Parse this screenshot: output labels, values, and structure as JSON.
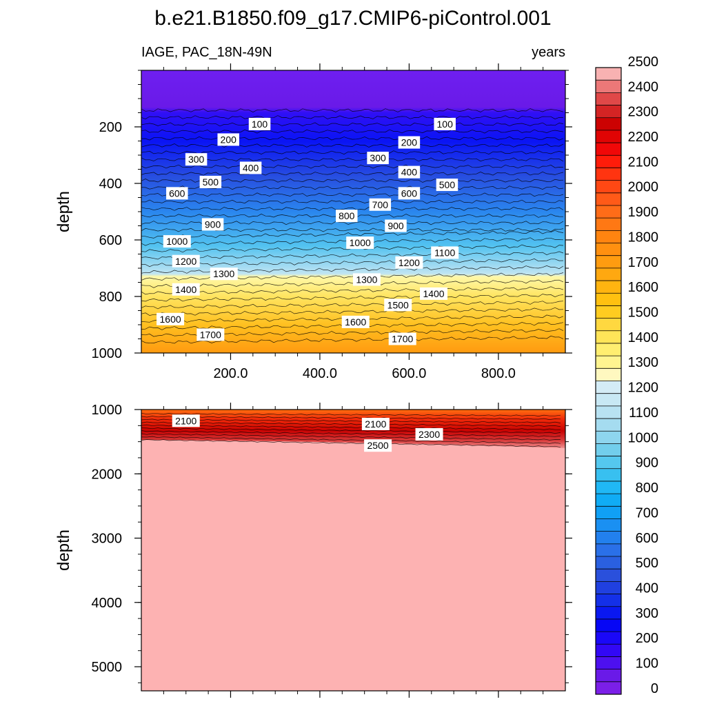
{
  "chart_data": {
    "type": "contour",
    "title": "b.e21.B1850.f09_g17.CMIP6-piControl.001",
    "variable_label": "IAGE, PAC_18N-49N",
    "units_label": "years",
    "panels": [
      {
        "ylabel": "depth",
        "y_range": [
          0,
          1000
        ],
        "y_reversed": true,
        "x_range": [
          0,
          950
        ],
        "x_ticks": [
          "200.0",
          "400.0",
          "600.0",
          "800.0"
        ],
        "y_ticks": [
          "200",
          "400",
          "600",
          "800",
          "1000"
        ],
        "contour_labels": [
          {
            "text": "100",
            "x": 265,
            "y": 190
          },
          {
            "text": "100",
            "x": 680,
            "y": 190
          },
          {
            "text": "200",
            "x": 195,
            "y": 245
          },
          {
            "text": "200",
            "x": 600,
            "y": 255
          },
          {
            "text": "300",
            "x": 123,
            "y": 315
          },
          {
            "text": "300",
            "x": 530,
            "y": 310
          },
          {
            "text": "400",
            "x": 245,
            "y": 345
          },
          {
            "text": "400",
            "x": 600,
            "y": 360
          },
          {
            "text": "500",
            "x": 155,
            "y": 395
          },
          {
            "text": "500",
            "x": 685,
            "y": 405
          },
          {
            "text": "600",
            "x": 80,
            "y": 435
          },
          {
            "text": "600",
            "x": 600,
            "y": 435
          },
          {
            "text": "700",
            "x": 535,
            "y": 475
          },
          {
            "text": "800",
            "x": 460,
            "y": 515
          },
          {
            "text": "900",
            "x": 160,
            "y": 545
          },
          {
            "text": "900",
            "x": 570,
            "y": 550
          },
          {
            "text": "1000",
            "x": 80,
            "y": 605
          },
          {
            "text": "1000",
            "x": 490,
            "y": 610
          },
          {
            "text": "1100",
            "x": 680,
            "y": 645
          },
          {
            "text": "1200",
            "x": 100,
            "y": 675
          },
          {
            "text": "1200",
            "x": 600,
            "y": 680
          },
          {
            "text": "1300",
            "x": 185,
            "y": 720
          },
          {
            "text": "1300",
            "x": 505,
            "y": 740
          },
          {
            "text": "1400",
            "x": 100,
            "y": 775
          },
          {
            "text": "1400",
            "x": 655,
            "y": 790
          },
          {
            "text": "1500",
            "x": 575,
            "y": 830
          },
          {
            "text": "1600",
            "x": 65,
            "y": 880
          },
          {
            "text": "1600",
            "x": 480,
            "y": 890
          },
          {
            "text": "1700",
            "x": 155,
            "y": 935
          },
          {
            "text": "1700",
            "x": 585,
            "y": 950
          }
        ]
      },
      {
        "ylabel": "depth",
        "y_range": [
          1000,
          5375
        ],
        "y_reversed": true,
        "x_range": [
          0,
          950
        ],
        "y_ticks": [
          "1000",
          "2000",
          "3000",
          "4000",
          "5000"
        ],
        "contour_labels": [
          {
            "text": "2100",
            "x": 100,
            "y": 1175
          },
          {
            "text": "2100",
            "x": 525,
            "y": 1225
          },
          {
            "text": "2300",
            "x": 645,
            "y": 1385
          },
          {
            "text": "2500",
            "x": 530,
            "y": 1560
          }
        ]
      }
    ],
    "colorbar": {
      "labels": [
        "0",
        "100",
        "200",
        "300",
        "400",
        "500",
        "600",
        "700",
        "800",
        "900",
        "1000",
        "1100",
        "1200",
        "1300",
        "1400",
        "1500",
        "1600",
        "1700",
        "1800",
        "1900",
        "2000",
        "2100",
        "2200",
        "2300",
        "2400",
        "2500"
      ],
      "colors": [
        "#7b1fe8",
        "#6a1ae8",
        "#4d10ef",
        "#3208f5",
        "#1a08f8",
        "#0606f5",
        "#0a18f0",
        "#1430e8",
        "#2040e0",
        "#2a50dc",
        "#2a60e0",
        "#2a70e8",
        "#2280ee",
        "#1a90f2",
        "#10a0f5",
        "#10acf5",
        "#20b8f5",
        "#38c0f0",
        "#55c8ee",
        "#72ceec",
        "#8ed5ee",
        "#a5dcf0",
        "#b8e2f2",
        "#c8e8f4",
        "#d4ecf6",
        "#fff8c0",
        "#fff490",
        "#ffee70",
        "#ffe458",
        "#ffd840",
        "#ffcc20",
        "#ffc010",
        "#ffb410",
        "#ffa810",
        "#ff9c10",
        "#ff9010",
        "#ff8410",
        "#ff7814",
        "#ff6c18",
        "#ff5a18",
        "#ff4814",
        "#ff3410",
        "#ff1c0a",
        "#f00808",
        "#e00404",
        "#cc0202",
        "#d42424",
        "#e04848",
        "#ec7878",
        "#f8b2b2"
      ]
    }
  }
}
